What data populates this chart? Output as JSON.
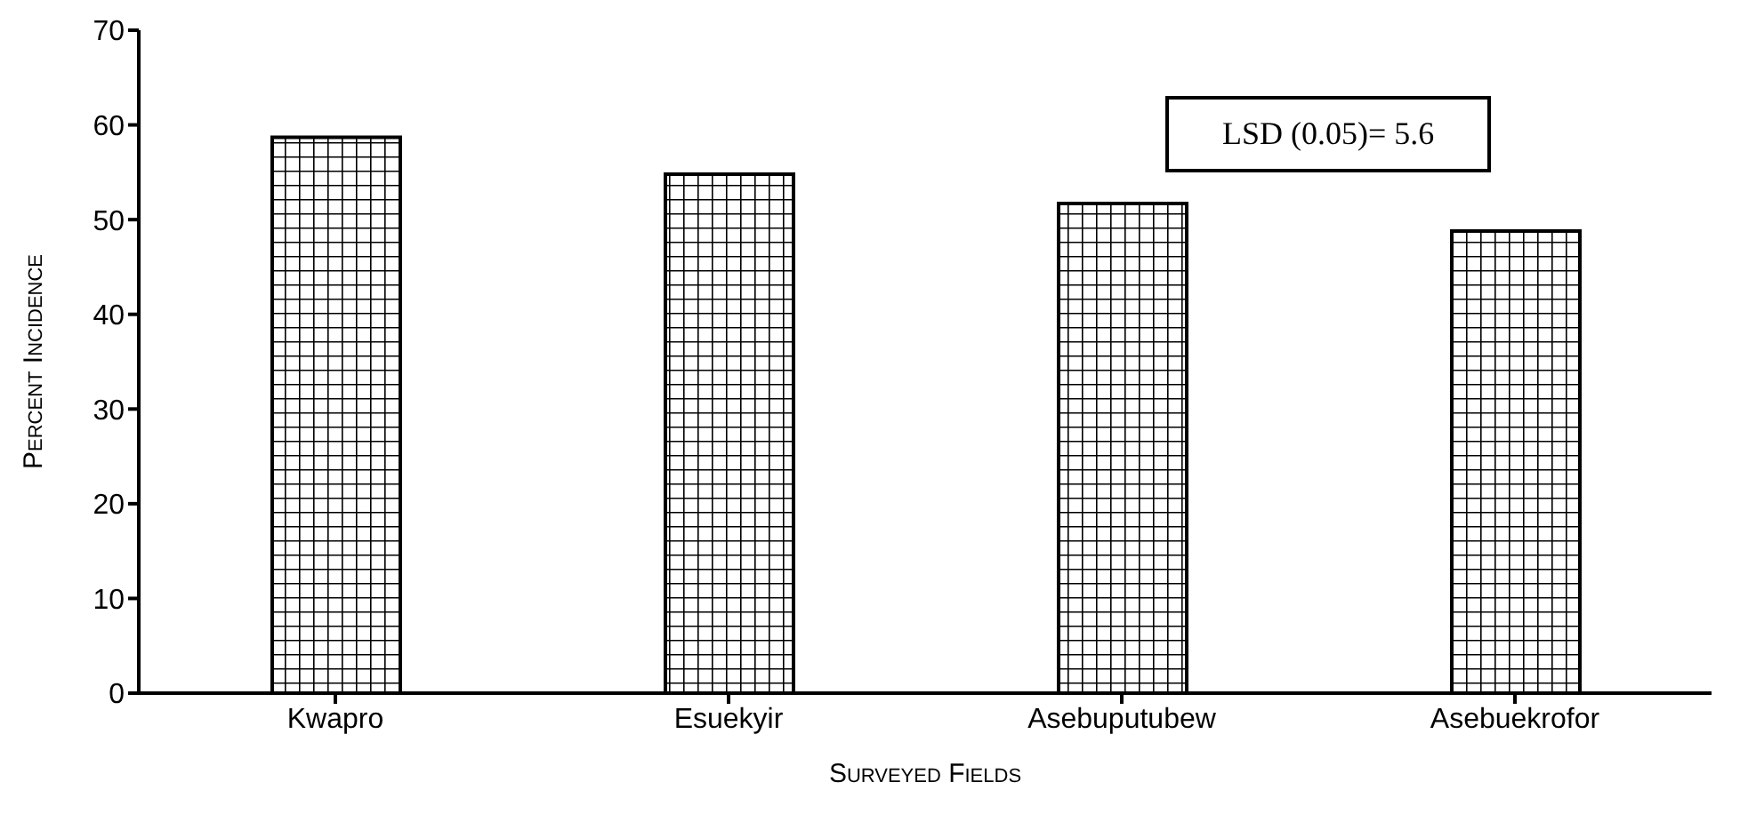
{
  "chart_data": {
    "type": "bar",
    "xlabel": "Surveyed Fields",
    "ylabel": "Percent Incidence",
    "categories": [
      "Kwapro",
      "Esuekyir",
      "Asebuputubew",
      "Asebuekrofor"
    ],
    "values": [
      58.7,
      54.8,
      51.7,
      48.8
    ],
    "color": "#000000",
    "ylim": [
      0,
      70
    ],
    "yticks": [
      0,
      10,
      20,
      30,
      40,
      50,
      60,
      70
    ],
    "annotations": [
      "LSD (0.05)= 5.6"
    ]
  }
}
